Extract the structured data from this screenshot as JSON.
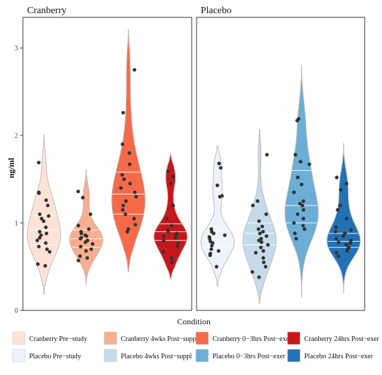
{
  "chart_data": {
    "type": "violin",
    "xlabel": "Condition",
    "ylabel": "ng/ml",
    "ylim": [
      0,
      3.35
    ],
    "yticks": [
      0,
      1,
      2,
      3
    ],
    "grid": false,
    "legend_position": "bottom",
    "panels": [
      {
        "title": "Cranberry",
        "violins": [
          {
            "name": "Cranberry Pre−study",
            "color": "#fde3d7",
            "min": 0.18,
            "max": 2.01,
            "quartiles": [
              0.75,
              0.92,
              1.09
            ],
            "points": [
              1.69,
              1.35,
              1.34,
              1.26,
              1.2,
              1.1,
              1.08,
              1.05,
              1.02,
              0.95,
              0.9,
              0.88,
              0.86,
              0.83,
              0.8,
              0.77,
              0.73,
              0.7,
              0.67,
              0.53,
              0.51
            ]
          },
          {
            "name": "Cranberry 4wks Post−suppl",
            "color": "#f9ae8f",
            "min": 0.3,
            "max": 1.61,
            "quartiles": [
              0.72,
              0.82,
              0.92
            ],
            "points": [
              1.36,
              1.29,
              1.1,
              0.97,
              0.93,
              0.9,
              0.88,
              0.86,
              0.85,
              0.83,
              0.82,
              0.8,
              0.78,
              0.76,
              0.73,
              0.7,
              0.68,
              0.62,
              0.6,
              0.57
            ]
          },
          {
            "name": "Cranberry 0−3hrs Post−exer",
            "color": "#f66a4a",
            "min": 0.44,
            "max": 3.21,
            "quartiles": [
              1.1,
              1.33,
              1.58
            ],
            "points": [
              2.75,
              2.26,
              1.9,
              1.8,
              1.67,
              1.55,
              1.5,
              1.45,
              1.4,
              1.35,
              1.3,
              1.25,
              1.2,
              1.15,
              1.1,
              1.05,
              0.98,
              0.93,
              0.9
            ]
          },
          {
            "name": "Cranberry 24hrs Post−exer",
            "color": "#c9161b",
            "min": 0.36,
            "max": 1.79,
            "quartiles": [
              0.8,
              0.9,
              0.99
            ],
            "points": [
              1.59,
              1.53,
              1.45,
              1.2,
              1.05,
              0.97,
              0.92,
              0.9,
              0.88,
              0.86,
              0.85,
              0.83,
              0.8,
              0.77,
              0.73,
              0.67,
              0.6,
              0.55
            ]
          }
        ]
      },
      {
        "title": "Placebo",
        "violins": [
          {
            "name": "Placebo Pre−study",
            "color": "#eef2fa",
            "min": 0.28,
            "max": 1.88,
            "quartiles": [
              0.73,
              0.81,
              0.91
            ],
            "points": [
              1.68,
              1.63,
              1.43,
              1.31,
              1.3,
              0.93,
              0.9,
              0.88,
              0.86,
              0.84,
              0.82,
              0.79,
              0.77,
              0.74,
              0.7,
              0.68,
              0.65,
              0.63,
              0.5
            ]
          },
          {
            "name": "Placebo 4wks Post−suppl",
            "color": "#c6dbe9",
            "min": 0.08,
            "max": 2.07,
            "quartiles": [
              0.75,
              0.88,
              1.0
            ],
            "points": [
              1.78,
              1.25,
              1.2,
              1.1,
              1.02,
              0.96,
              0.93,
              0.9,
              0.88,
              0.85,
              0.82,
              0.8,
              0.78,
              0.75,
              0.72,
              0.68,
              0.66,
              0.6,
              0.55,
              0.5,
              0.44,
              0.38
            ]
          },
          {
            "name": "Placebo 0−3hrs Post−exer",
            "color": "#6baed6",
            "min": 0.15,
            "max": 2.8,
            "quartiles": [
              1.0,
              1.2,
              1.6
            ],
            "points": [
              2.19,
              2.17,
              1.78,
              1.7,
              1.67,
              1.52,
              1.44,
              1.35,
              1.25,
              1.22,
              1.2,
              1.15,
              1.1,
              1.05,
              1.0,
              0.97,
              0.93,
              0.88,
              0.82
            ]
          },
          {
            "name": "Placebo 24hrs Post−exer",
            "color": "#2171b5",
            "min": 0.2,
            "max": 1.91,
            "quartiles": [
              0.72,
              0.79,
              0.88
            ],
            "points": [
              1.52,
              1.45,
              1.38,
              1.2,
              1.15,
              1.05,
              0.95,
              0.92,
              0.9,
              0.88,
              0.85,
              0.82,
              0.8,
              0.78,
              0.77,
              0.75,
              0.72,
              0.7,
              0.68,
              0.66,
              0.62
            ]
          }
        ]
      }
    ],
    "legend": [
      {
        "label": "Cranberry Pre−study",
        "color": "#fde3d7"
      },
      {
        "label": "Cranberry 4wks Post−suppl",
        "color": "#f9ae8f"
      },
      {
        "label": "Cranberry 0−3hrs Post−exer",
        "color": "#f66a4a"
      },
      {
        "label": "Cranberry 24hrs Post−exer",
        "color": "#c9161b"
      },
      {
        "label": "Placebo Pre−study",
        "color": "#eef2fa"
      },
      {
        "label": "Placebo 4wks Post−suppl",
        "color": "#c6dbe9"
      },
      {
        "label": "Placebo 0−3hrs Post−exer",
        "color": "#6baed6"
      },
      {
        "label": "Placebo 24hrs Post−exer",
        "color": "#2171b5"
      }
    ]
  }
}
